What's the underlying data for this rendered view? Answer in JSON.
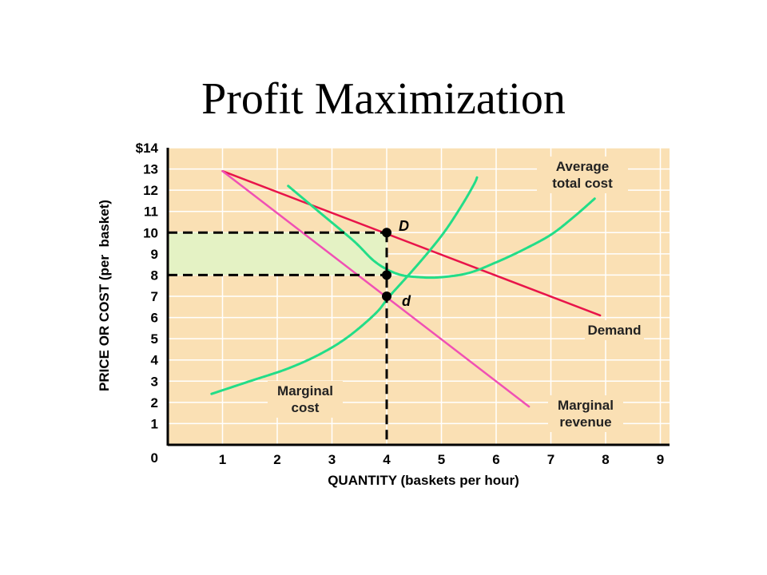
{
  "title": "Profit Maximization",
  "chart_data": {
    "type": "line",
    "xlabel": "QUANTITY (baskets per hour)",
    "ylabel": "PRICE OR COST (per  basket)",
    "xlim": [
      0,
      9
    ],
    "ylim": [
      0,
      14
    ],
    "x_ticks": [
      "1",
      "2",
      "3",
      "4",
      "5",
      "6",
      "7",
      "8",
      "9"
    ],
    "y_ticks": [
      "$14",
      "13",
      "12",
      "11",
      "10",
      "9",
      "8",
      "7",
      "6",
      "5",
      "4",
      "3",
      "2",
      "1"
    ],
    "origin_label": "0",
    "grid": true,
    "colors": {
      "plot_bg": "#fae0b4",
      "grid": "#ffffff",
      "demand": "#e8144a",
      "marginal_revenue": "#f050b4",
      "cost_curves": "#22dd88",
      "profit_area": "#e4f2c4"
    },
    "series": [
      {
        "name": "Demand",
        "points": [
          [
            1,
            12.9
          ],
          [
            7.9,
            6.1
          ]
        ]
      },
      {
        "name": "Marginal revenue",
        "points": [
          [
            1,
            12.9
          ],
          [
            6.6,
            1.8
          ]
        ]
      },
      {
        "name": "Marginal cost",
        "points": [
          [
            0.8,
            2.4
          ],
          [
            1.5,
            3.0
          ],
          [
            2.2,
            3.6
          ],
          [
            2.8,
            4.3
          ],
          [
            3.3,
            5.1
          ],
          [
            3.8,
            6.2
          ],
          [
            4.05,
            7.0
          ],
          [
            4.4,
            8.0
          ],
          [
            4.8,
            9.2
          ],
          [
            5.1,
            10.2
          ],
          [
            5.4,
            11.4
          ],
          [
            5.6,
            12.3
          ],
          [
            5.65,
            12.6
          ]
        ]
      },
      {
        "name": "Average total cost",
        "points": [
          [
            2.2,
            12.2
          ],
          [
            2.8,
            10.9
          ],
          [
            3.4,
            9.6
          ],
          [
            3.8,
            8.6
          ],
          [
            4.2,
            8.05
          ],
          [
            4.6,
            7.9
          ],
          [
            5.0,
            7.9
          ],
          [
            5.5,
            8.1
          ],
          [
            6.0,
            8.6
          ],
          [
            6.5,
            9.2
          ],
          [
            7.0,
            9.9
          ],
          [
            7.4,
            10.7
          ],
          [
            7.8,
            11.6
          ]
        ]
      }
    ],
    "annotations": [
      {
        "label": "D",
        "x": 4,
        "y": 10
      },
      {
        "label": "d",
        "x": 4,
        "y": 7
      }
    ],
    "reference_points": [
      {
        "x": 4,
        "y": 10
      },
      {
        "x": 4,
        "y": 8
      },
      {
        "x": 4,
        "y": 7
      }
    ],
    "profit_rect": {
      "x0": 0,
      "x1": 4,
      "y0": 8,
      "y1": 10
    },
    "curve_labels": {
      "atc": [
        "Average",
        "total cost"
      ],
      "demand": [
        "Demand"
      ],
      "mr": [
        "Marginal",
        "revenue"
      ],
      "mc": [
        "Marginal",
        "cost"
      ]
    }
  }
}
